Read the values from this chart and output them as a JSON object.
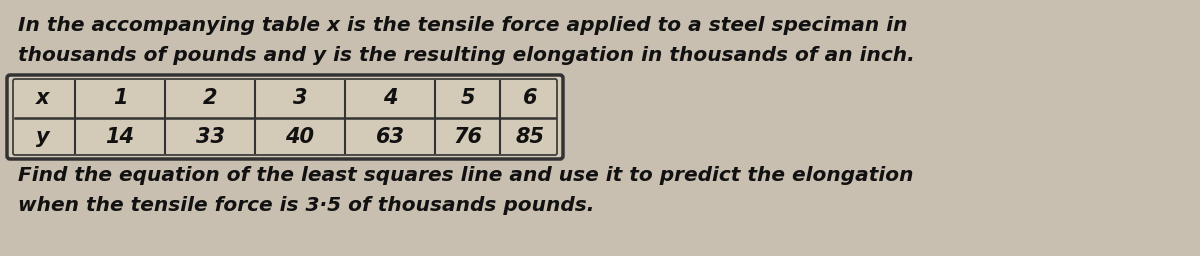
{
  "line1": "In the accompanying table x is the tensile force applied to a steel speciman in",
  "line2": "thousands of pounds and y is the resulting elongation in thousands of an inch.",
  "table_x_label": "x",
  "table_y_label": "y",
  "x_values": [
    "1",
    "2",
    "3",
    "4",
    "5",
    "6"
  ],
  "y_values": [
    "14",
    "33",
    "40",
    "63",
    "76",
    "85"
  ],
  "footer_line1": "Find the equation of the least squares line and use it to predict the elongation",
  "footer_line2": "when the tensile force is 3·5 of thousands pounds.",
  "bg_color": "#c8bfb0",
  "text_color": "#111111",
  "table_bg": "#d4cab8",
  "table_border": "#333333"
}
